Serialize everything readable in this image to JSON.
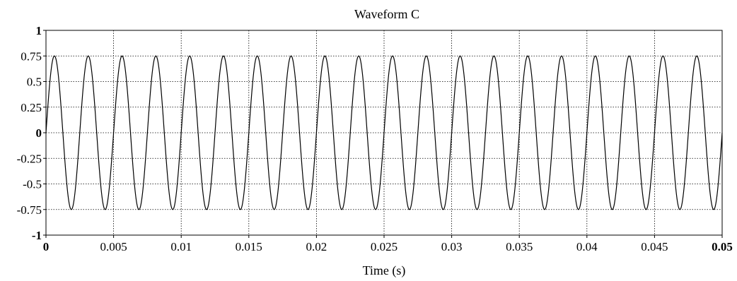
{
  "chart_data": {
    "type": "line",
    "title": "Waveform C",
    "xlabel": "Time (s)",
    "ylabel": "",
    "xlim": [
      0,
      0.05
    ],
    "ylim": [
      -1,
      1
    ],
    "grid": true,
    "x_ticks": [
      "0",
      "0.005",
      "0.01",
      "0.015",
      "0.02",
      "0.025",
      "0.03",
      "0.035",
      "0.04",
      "0.045",
      "0.05"
    ],
    "y_ticks": [
      "1",
      "0.75",
      "0.5",
      "0.25",
      "0",
      "-0.25",
      "-0.5",
      "-0.75",
      "-1"
    ],
    "series": [
      {
        "waveform": "sine",
        "amplitude": 0.75,
        "frequency_hz": 400,
        "phase_rad": 0,
        "color": "#000000"
      }
    ]
  }
}
